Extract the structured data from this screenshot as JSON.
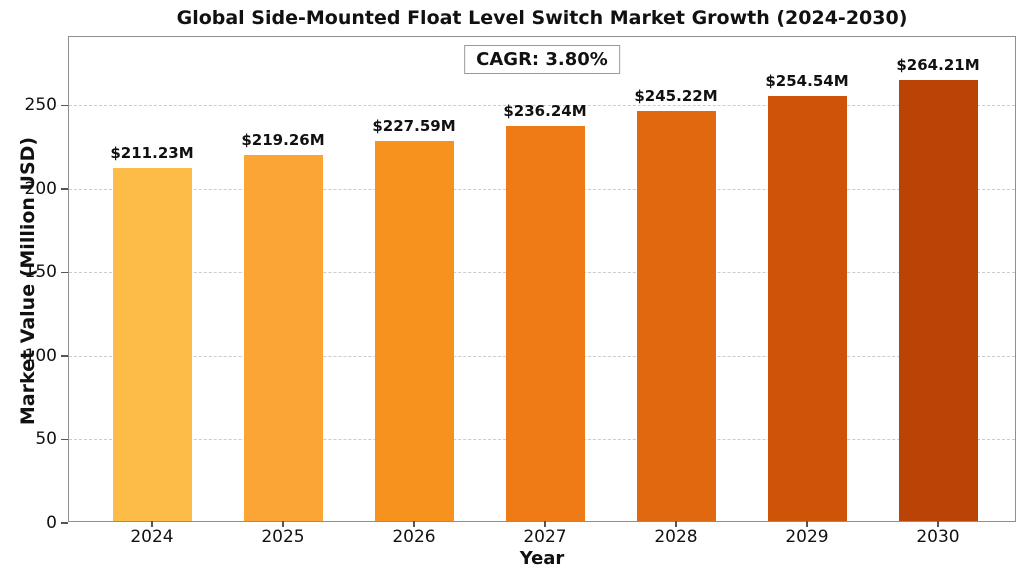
{
  "chart_data": {
    "type": "bar",
    "title": "Global Side-Mounted Float Level Switch Market Growth (2024-2030)",
    "xlabel": "Year",
    "ylabel": "Market Value (Million USD)",
    "categories": [
      "2024",
      "2025",
      "2026",
      "2027",
      "2028",
      "2029",
      "2030"
    ],
    "values": [
      211.23,
      219.26,
      227.59,
      236.24,
      245.22,
      254.54,
      264.21
    ],
    "bar_labels": [
      "$211.23M",
      "$219.26M",
      "$227.59M",
      "$236.24M",
      "$245.22M",
      "$254.54M",
      "$264.21M"
    ],
    "bar_colors": [
      "#FDBB47",
      "#FCA537",
      "#F7921E",
      "#EE7B16",
      "#E0690F",
      "#CE5508",
      "#BB4305"
    ],
    "annotation": "CAGR: 3.80%",
    "yticks": [
      0,
      50,
      100,
      150,
      200,
      250
    ],
    "ylim": [
      0,
      291
    ],
    "grid": "horizontal-dashed",
    "legend": "none"
  }
}
